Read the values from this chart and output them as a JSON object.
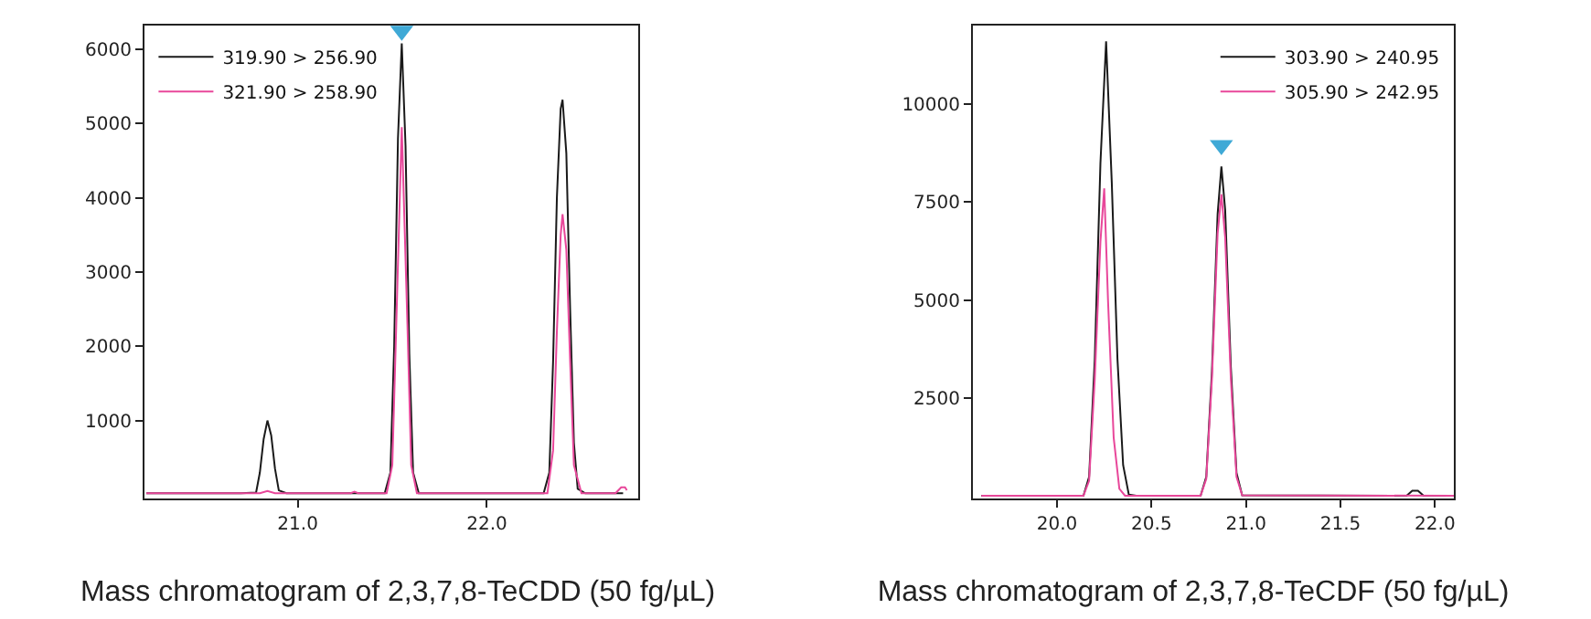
{
  "chart_data": [
    {
      "type": "line",
      "title": "Mass chromatogram of 2,3,7,8-TeCDD (50 fg/µL)",
      "legend": "top left",
      "grid": false,
      "xlim": [
        20.19,
        22.8
      ],
      "ylim": [
        -50,
        6320
      ],
      "xticks": [
        {
          "value": 21,
          "label": "21.0"
        },
        {
          "value": 22,
          "label": "22.0"
        }
      ],
      "yticks": [
        1000,
        2000,
        3000,
        4000,
        5000,
        6000
      ],
      "series": [
        {
          "name": "319.90 > 256.90",
          "color": "#1a1a1a",
          "x": [
            20.2,
            20.5,
            20.7,
            20.78,
            20.8,
            20.82,
            20.84,
            20.86,
            20.88,
            20.9,
            20.94,
            21.3,
            21.46,
            21.49,
            21.51,
            21.53,
            21.55,
            21.57,
            21.59,
            21.61,
            21.64,
            22.3,
            22.33,
            22.35,
            22.37,
            22.39,
            22.4,
            22.42,
            22.44,
            22.46,
            22.48,
            22.52,
            22.72
          ],
          "values": [
            20,
            20,
            20,
            30,
            300,
            750,
            1000,
            800,
            350,
            60,
            20,
            20,
            20,
            300,
            2000,
            4800,
            6080,
            4700,
            1900,
            300,
            20,
            20,
            300,
            1800,
            4000,
            5200,
            5320,
            4600,
            2500,
            700,
            80,
            20,
            20
          ]
        },
        {
          "name": "321.90 > 258.90",
          "color": "#e8479a",
          "x": [
            20.2,
            20.8,
            20.84,
            20.88,
            21.28,
            21.3,
            21.32,
            21.47,
            21.5,
            21.52,
            21.55,
            21.58,
            21.6,
            21.63,
            22.32,
            22.35,
            22.37,
            22.39,
            22.4,
            22.42,
            22.44,
            22.46,
            22.5,
            22.68,
            22.71,
            22.73,
            22.74
          ],
          "values": [
            20,
            20,
            50,
            20,
            20,
            40,
            20,
            20,
            400,
            2200,
            4950,
            2300,
            400,
            20,
            20,
            600,
            2200,
            3500,
            3780,
            3300,
            1800,
            400,
            20,
            20,
            100,
            100,
            60
          ]
        },
        {
          "type": "scatter",
          "marker": "triangle",
          "color": "#3fa9d6",
          "x": [
            21.55
          ],
          "values": [
            6250
          ]
        }
      ]
    },
    {
      "type": "line",
      "title": "Mass chromatogram of 2,3,7,8-TeCDF (50 fg/µL)",
      "legend": "top right",
      "grid": false,
      "xlim": [
        19.555,
        22.1
      ],
      "ylim": [
        -50,
        12000
      ],
      "xticks": [
        {
          "value": 20,
          "label": "20.0"
        },
        {
          "value": 20.5,
          "label": "20.5"
        },
        {
          "value": 21,
          "label": "21.0"
        },
        {
          "value": 21.5,
          "label": "21.5"
        },
        {
          "value": 22,
          "label": "22.0"
        }
      ],
      "yticks": [
        2500,
        5000,
        7500,
        10000
      ],
      "series": [
        {
          "name": "303.90 > 240.95",
          "color": "#1a1a1a",
          "x": [
            19.6,
            20.14,
            20.17,
            20.2,
            20.23,
            20.26,
            20.29,
            20.32,
            20.35,
            20.38,
            20.42,
            20.76,
            20.79,
            20.82,
            20.85,
            20.87,
            20.89,
            20.92,
            20.95,
            20.98,
            21.85,
            21.88,
            21.91,
            21.94,
            22.1
          ],
          "values": [
            20,
            20,
            500,
            3500,
            8500,
            11600,
            8000,
            3500,
            800,
            50,
            20,
            20,
            500,
            3200,
            7200,
            8410,
            7300,
            3300,
            600,
            30,
            20,
            150,
            150,
            20,
            20
          ]
        },
        {
          "name": "305.90 > 242.95",
          "color": "#e8479a",
          "x": [
            19.6,
            20.14,
            20.17,
            20.2,
            20.23,
            20.25,
            20.27,
            20.3,
            20.33,
            20.36,
            20.76,
            20.79,
            20.82,
            20.85,
            20.87,
            20.89,
            20.92,
            20.95,
            20.98,
            22.1
          ],
          "values": [
            20,
            20,
            400,
            3000,
            6500,
            7850,
            5000,
            1500,
            200,
            20,
            20,
            450,
            3000,
            6700,
            7700,
            6600,
            3000,
            500,
            30,
            20
          ]
        },
        {
          "type": "scatter",
          "marker": "triangle",
          "color": "#3fa9d6",
          "x": [
            20.87
          ],
          "values": [
            8950
          ]
        }
      ]
    }
  ]
}
